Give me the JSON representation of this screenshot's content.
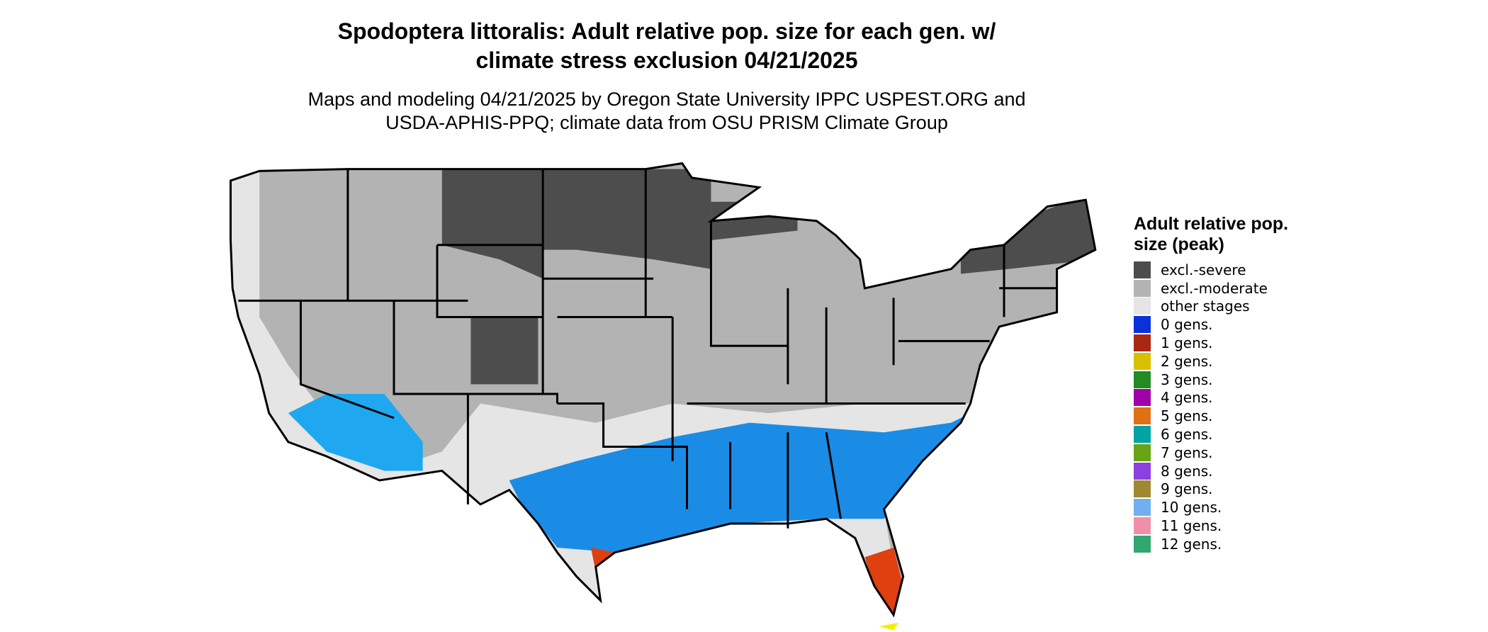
{
  "title": "Spodoptera littoralis: Adult relative pop. size for each gen. w/ climate stress exclusion 04/21/2025",
  "subtitle": "Maps and modeling 04/21/2025 by Oregon State University IPPC USPEST.ORG and USDA-APHIS-PPQ; climate data from OSU PRISM Climate Group",
  "legend": {
    "title": "Adult relative pop. size (peak)",
    "items": [
      {
        "label": "excl.-severe",
        "color": "#4d4d4d"
      },
      {
        "label": "excl.-moderate",
        "color": "#b3b3b3"
      },
      {
        "label": "other stages",
        "color": "#e5e5e5"
      },
      {
        "label": "0 gens.",
        "color": "#0a32d8"
      },
      {
        "label": "1 gens.",
        "color": "#a82814"
      },
      {
        "label": "2 gens.",
        "color": "#d8c000"
      },
      {
        "label": "3 gens.",
        "color": "#228b22"
      },
      {
        "label": "4 gens.",
        "color": "#a000a8"
      },
      {
        "label": "5 gens.",
        "color": "#e07014"
      },
      {
        "label": "6 gens.",
        "color": "#00a4a4"
      },
      {
        "label": "7 gens.",
        "color": "#68a414"
      },
      {
        "label": "8 gens.",
        "color": "#8c40e0"
      },
      {
        "label": "9 gens.",
        "color": "#a08830"
      },
      {
        "label": "10 gens.",
        "color": "#70b0f0"
      },
      {
        "label": "11 gens.",
        "color": "#f090a8"
      },
      {
        "label": "12 gens.",
        "color": "#30a870"
      }
    ]
  }
}
